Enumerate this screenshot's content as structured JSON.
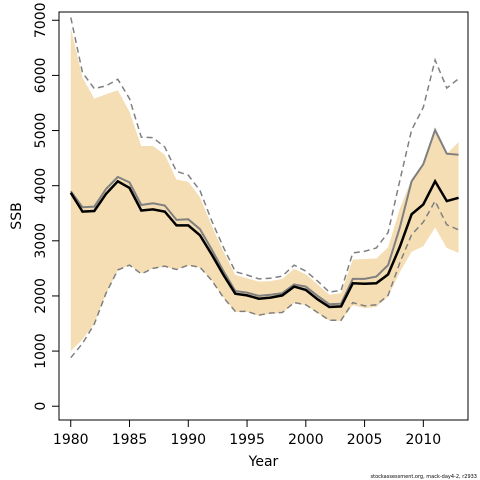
{
  "chart_data": {
    "type": "line",
    "xlabel": "Year",
    "ylabel": "SSB",
    "xlim": [
      1979.0,
      2013.8
    ],
    "ylim": [
      -250,
      7150
    ],
    "xticks": [
      1980,
      1985,
      1990,
      1995,
      2000,
      2005,
      2010
    ],
    "yticks": [
      0,
      1000,
      2000,
      3000,
      4000,
      5000,
      6000,
      7000
    ],
    "x": [
      1980,
      1981,
      1982,
      1983,
      1984,
      1985,
      1986,
      1987,
      1988,
      1989,
      1990,
      1991,
      1992,
      1993,
      1994,
      1995,
      1996,
      1997,
      1998,
      1999,
      2000,
      2001,
      2002,
      2003,
      2004,
      2005,
      2006,
      2007,
      2008,
      2009,
      2010,
      2011,
      2012,
      2013
    ],
    "series": [
      {
        "role": "current estimate",
        "color": "#000000",
        "values": [
          3870,
          3530,
          3540,
          3850,
          4080,
          3960,
          3550,
          3570,
          3530,
          3280,
          3280,
          3100,
          2750,
          2380,
          2040,
          2010,
          1950,
          1970,
          2010,
          2170,
          2110,
          1940,
          1800,
          1810,
          2230,
          2220,
          2230,
          2390,
          2890,
          3480,
          3660,
          4080,
          3720,
          3780
        ]
      },
      {
        "role": "previous estimate",
        "color": "#808080",
        "values": [
          3900,
          3610,
          3620,
          3940,
          4160,
          4060,
          3650,
          3680,
          3640,
          3380,
          3390,
          3210,
          2840,
          2450,
          2090,
          2060,
          2000,
          2020,
          2050,
          2210,
          2170,
          2000,
          1850,
          1860,
          2310,
          2310,
          2350,
          2560,
          3240,
          4080,
          4390,
          5010,
          4580,
          4560
        ]
      },
      {
        "role": "upper confidence bound",
        "color": "#808080",
        "style": "dashed",
        "values": [
          7050,
          6050,
          5760,
          5810,
          5930,
          5580,
          4880,
          4870,
          4700,
          4260,
          4190,
          3910,
          3360,
          2880,
          2440,
          2380,
          2310,
          2320,
          2360,
          2560,
          2450,
          2270,
          2070,
          2100,
          2780,
          2810,
          2870,
          3150,
          4090,
          5010,
          5420,
          6280,
          5770,
          5940
        ]
      },
      {
        "role": "lower confidence bound",
        "color": "#808080",
        "style": "dashed",
        "values": [
          880,
          1140,
          1490,
          2050,
          2470,
          2560,
          2400,
          2500,
          2540,
          2480,
          2560,
          2520,
          2280,
          1970,
          1720,
          1720,
          1650,
          1690,
          1700,
          1880,
          1840,
          1700,
          1560,
          1560,
          1880,
          1820,
          1840,
          2010,
          2600,
          3110,
          3340,
          3720,
          3290,
          3200
        ]
      }
    ],
    "band": {
      "role": "confidence band",
      "color": "#f5deb3",
      "upper": [
        6860,
        5960,
        5580,
        5660,
        5730,
        5340,
        4720,
        4720,
        4560,
        4110,
        4070,
        3790,
        3270,
        2800,
        2380,
        2320,
        2260,
        2270,
        2310,
        2490,
        2390,
        2210,
        2020,
        2050,
        2660,
        2670,
        2680,
        2880,
        3580,
        4120,
        4420,
        5010,
        4580,
        4790
      ],
      "lower": [
        1000,
        1210,
        1500,
        2040,
        2460,
        2560,
        2410,
        2500,
        2530,
        2480,
        2550,
        2510,
        2280,
        1970,
        1710,
        1710,
        1640,
        1680,
        1690,
        1870,
        1830,
        1690,
        1550,
        1550,
        1830,
        1780,
        1800,
        1990,
        2430,
        2800,
        2900,
        3240,
        2870,
        2780
      ]
    },
    "grid": false,
    "legend": "none"
  },
  "footer": {
    "text": "stockassessment.org, mack-day4-2, r2933"
  }
}
